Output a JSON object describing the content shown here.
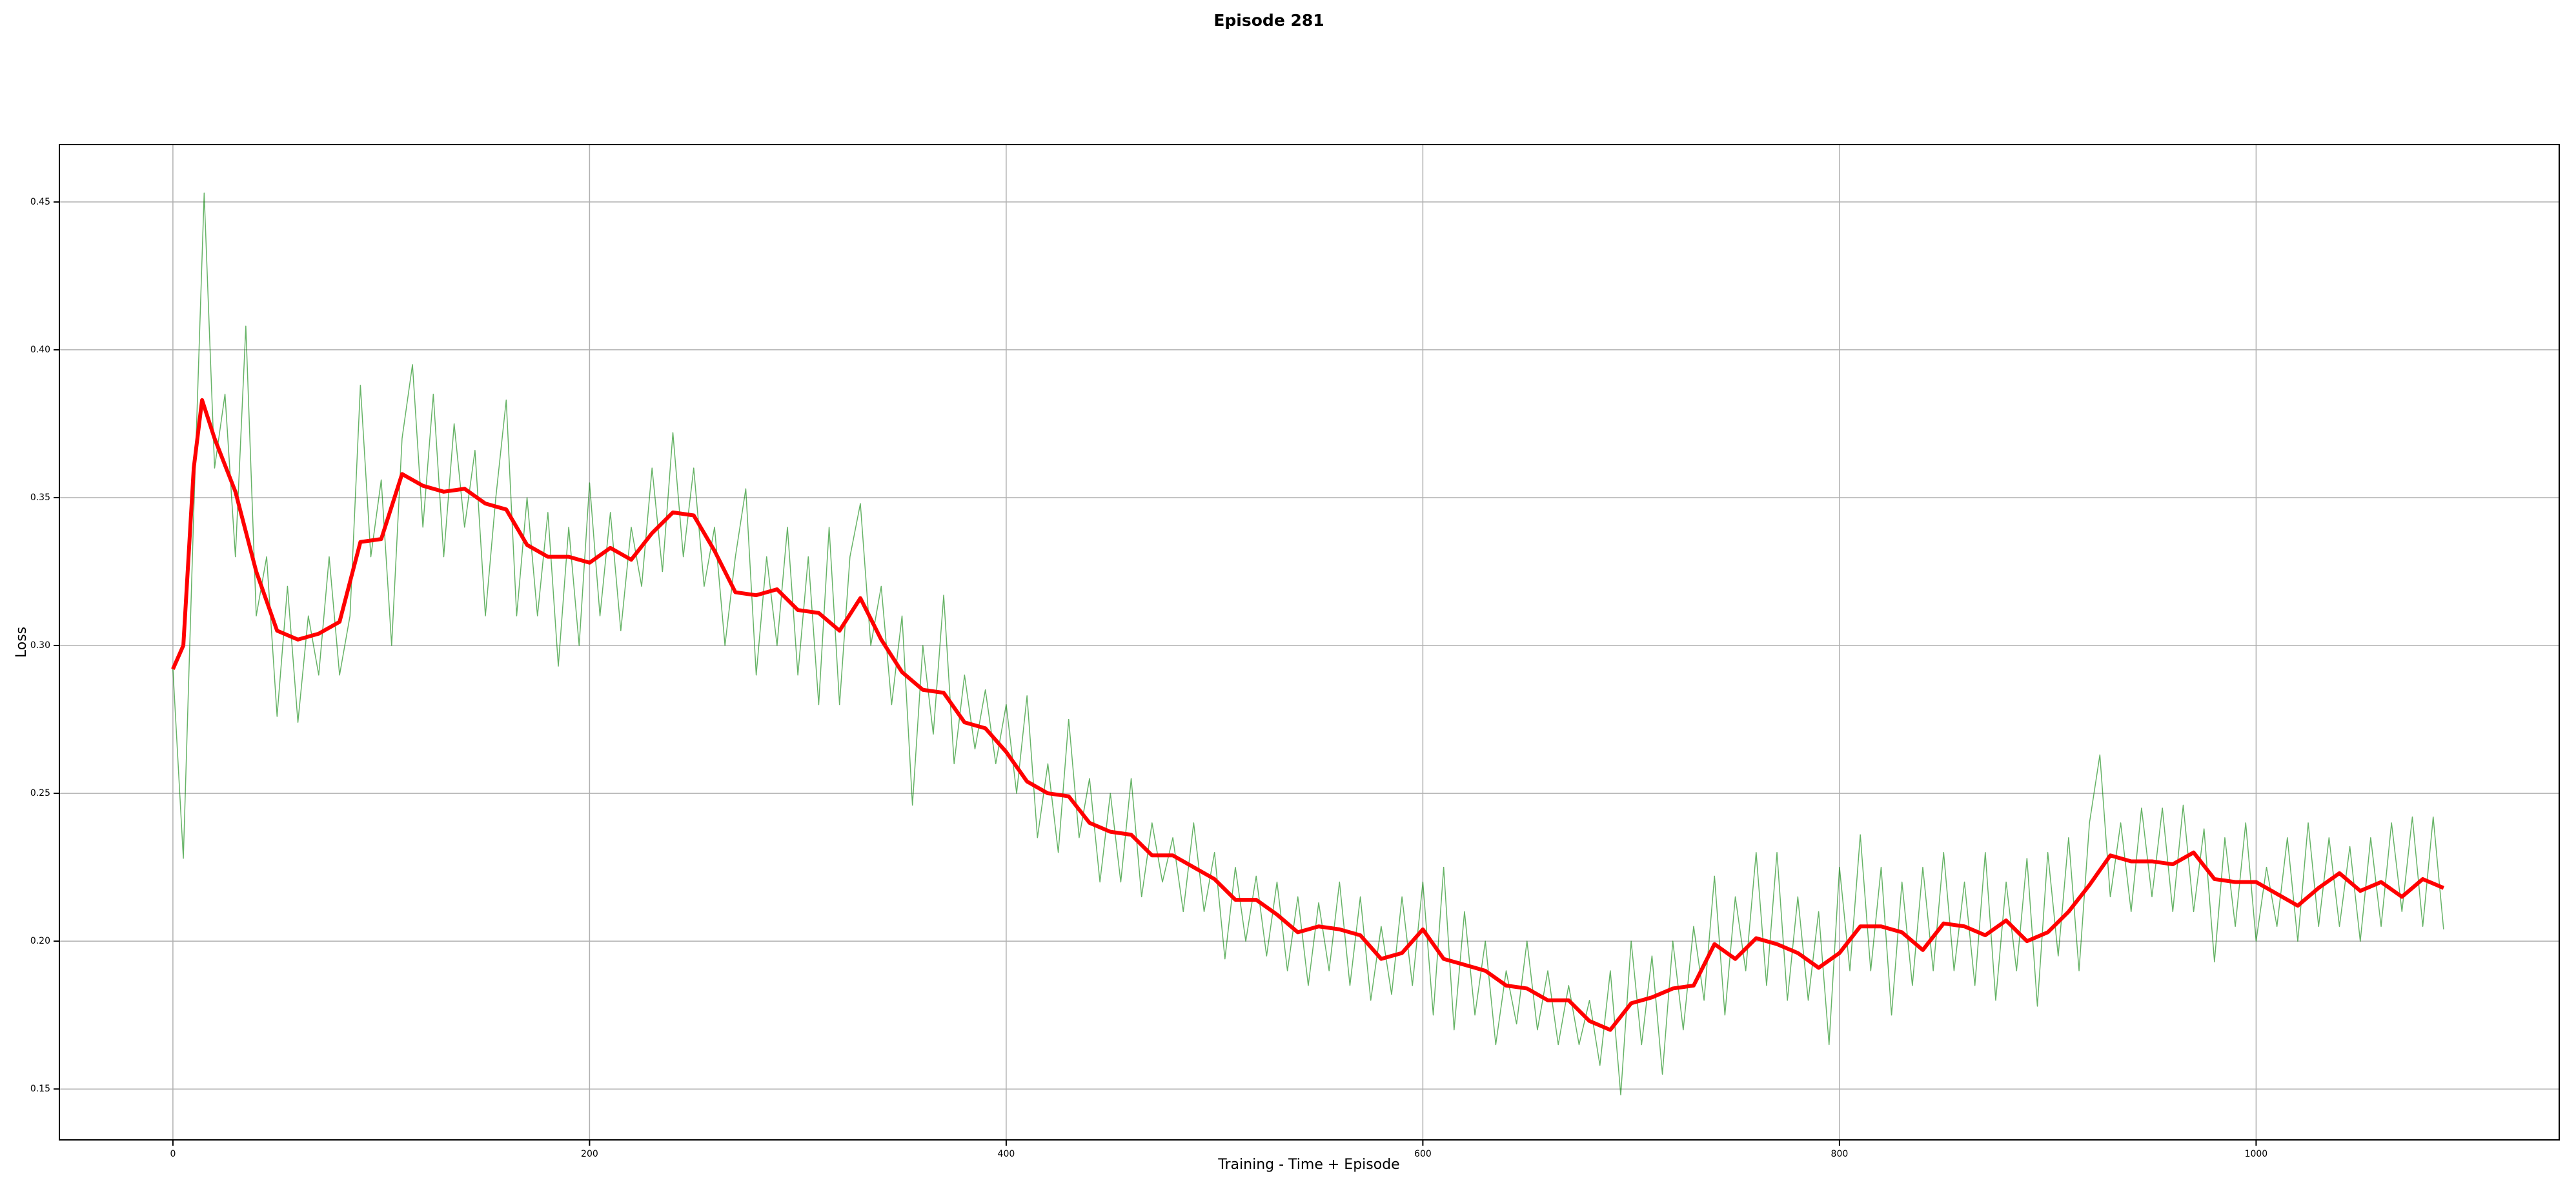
{
  "chart_data": {
    "type": "line",
    "title": "Episode 281",
    "x_label": "Training - Time + Episode",
    "y_label": "Loss",
    "xlim": [
      -54.5,
      1145.5
    ],
    "ylim": [
      0.1328,
      0.4694
    ],
    "xticks": [
      0,
      200,
      400,
      600,
      800,
      1000
    ],
    "yticks": [
      0.15,
      {
        "value": 0.2,
        "label": "0.20"
      },
      0.25,
      {
        "value": 0.3,
        "label": "0.30"
      },
      0.35,
      {
        "value": 0.4,
        "label": "0.40"
      },
      0.45
    ],
    "grid": true,
    "series": [
      {
        "color": "#008000",
        "x": [
          0,
          5,
          10,
          15,
          20,
          25,
          30,
          35,
          40,
          45,
          50,
          55,
          60,
          65,
          70,
          75,
          80,
          85,
          90,
          95,
          100,
          105,
          110,
          115,
          120,
          125,
          130,
          135,
          140,
          145,
          150,
          155,
          160,
          165,
          170,
          175,
          180,
          185,
          190,
          195,
          200,
          205,
          210,
          215,
          220,
          225,
          230,
          235,
          240,
          245,
          250,
          255,
          260,
          265,
          270,
          275,
          280,
          285,
          290,
          295,
          300,
          305,
          310,
          315,
          320,
          325,
          330,
          335,
          340,
          345,
          350,
          355,
          360,
          365,
          370,
          375,
          380,
          385,
          390,
          395,
          400,
          405,
          410,
          415,
          420,
          425,
          430,
          435,
          440,
          445,
          450,
          455,
          460,
          465,
          470,
          475,
          480,
          485,
          490,
          495,
          500,
          505,
          510,
          515,
          520,
          525,
          530,
          535,
          540,
          545,
          550,
          555,
          560,
          565,
          570,
          575,
          580,
          585,
          590,
          595,
          600,
          605,
          610,
          615,
          620,
          625,
          630,
          635,
          640,
          645,
          650,
          655,
          660,
          665,
          670,
          675,
          680,
          685,
          690,
          695,
          700,
          705,
          710,
          715,
          720,
          725,
          730,
          735,
          740,
          745,
          750,
          755,
          760,
          765,
          770,
          775,
          780,
          785,
          790,
          795,
          800,
          805,
          810,
          815,
          820,
          825,
          830,
          835,
          840,
          845,
          850,
          855,
          860,
          865,
          870,
          875,
          880,
          885,
          890,
          895,
          900,
          905,
          910,
          915,
          920,
          925,
          930,
          935,
          940,
          945,
          950,
          955,
          960,
          965,
          970,
          975,
          980,
          985,
          990,
          995,
          1000,
          1005,
          1010,
          1015,
          1020,
          1025,
          1030,
          1035,
          1040,
          1045,
          1050,
          1055,
          1060,
          1065,
          1070,
          1075,
          1080,
          1085,
          1090
        ],
        "values": [
          0.292,
          0.228,
          0.345,
          0.453,
          0.36,
          0.385,
          0.33,
          0.408,
          0.31,
          0.33,
          0.276,
          0.32,
          0.274,
          0.31,
          0.29,
          0.33,
          0.29,
          0.31,
          0.388,
          0.33,
          0.356,
          0.3,
          0.37,
          0.395,
          0.34,
          0.385,
          0.33,
          0.375,
          0.34,
          0.366,
          0.31,
          0.35,
          0.383,
          0.31,
          0.35,
          0.31,
          0.345,
          0.293,
          0.34,
          0.3,
          0.355,
          0.31,
          0.345,
          0.305,
          0.34,
          0.32,
          0.36,
          0.325,
          0.372,
          0.33,
          0.36,
          0.32,
          0.34,
          0.3,
          0.33,
          0.353,
          0.29,
          0.33,
          0.3,
          0.34,
          0.29,
          0.33,
          0.28,
          0.34,
          0.28,
          0.33,
          0.348,
          0.3,
          0.32,
          0.28,
          0.31,
          0.246,
          0.3,
          0.27,
          0.317,
          0.26,
          0.29,
          0.265,
          0.285,
          0.26,
          0.28,
          0.25,
          0.283,
          0.235,
          0.26,
          0.23,
          0.275,
          0.235,
          0.255,
          0.22,
          0.25,
          0.22,
          0.255,
          0.215,
          0.24,
          0.22,
          0.235,
          0.21,
          0.24,
          0.21,
          0.23,
          0.194,
          0.225,
          0.2,
          0.222,
          0.195,
          0.22,
          0.19,
          0.215,
          0.185,
          0.213,
          0.19,
          0.22,
          0.185,
          0.215,
          0.18,
          0.205,
          0.182,
          0.215,
          0.185,
          0.22,
          0.175,
          0.225,
          0.17,
          0.21,
          0.175,
          0.2,
          0.165,
          0.19,
          0.172,
          0.2,
          0.17,
          0.19,
          0.165,
          0.185,
          0.165,
          0.18,
          0.158,
          0.19,
          0.148,
          0.2,
          0.165,
          0.195,
          0.155,
          0.2,
          0.17,
          0.205,
          0.18,
          0.222,
          0.175,
          0.215,
          0.19,
          0.23,
          0.185,
          0.23,
          0.18,
          0.215,
          0.18,
          0.21,
          0.165,
          0.225,
          0.19,
          0.236,
          0.19,
          0.225,
          0.175,
          0.22,
          0.185,
          0.225,
          0.19,
          0.23,
          0.19,
          0.22,
          0.185,
          0.23,
          0.18,
          0.22,
          0.19,
          0.228,
          0.178,
          0.23,
          0.195,
          0.235,
          0.19,
          0.24,
          0.263,
          0.215,
          0.24,
          0.21,
          0.245,
          0.215,
          0.245,
          0.21,
          0.246,
          0.21,
          0.238,
          0.193,
          0.235,
          0.205,
          0.24,
          0.2,
          0.225,
          0.205,
          0.235,
          0.2,
          0.24,
          0.205,
          0.235,
          0.205,
          0.232,
          0.2,
          0.235,
          0.205,
          0.24,
          0.21,
          0.242,
          0.205,
          0.242,
          0.204
        ]
      },
      {
        "color": "#ff0000",
        "x": [
          0,
          5,
          10,
          14,
          20,
          30,
          40,
          50,
          60,
          70,
          80,
          90,
          100,
          110,
          120,
          130,
          140,
          150,
          160,
          170,
          180,
          190,
          200,
          210,
          220,
          230,
          240,
          250,
          260,
          270,
          280,
          290,
          300,
          310,
          320,
          330,
          340,
          350,
          360,
          370,
          380,
          390,
          400,
          410,
          420,
          430,
          440,
          450,
          460,
          470,
          480,
          490,
          500,
          510,
          520,
          530,
          540,
          550,
          560,
          570,
          580,
          590,
          600,
          610,
          620,
          630,
          640,
          650,
          660,
          670,
          680,
          690,
          700,
          710,
          720,
          730,
          740,
          750,
          760,
          770,
          780,
          790,
          800,
          810,
          820,
          830,
          840,
          850,
          860,
          870,
          880,
          890,
          900,
          910,
          920,
          930,
          940,
          950,
          960,
          970,
          980,
          990,
          1000,
          1010,
          1020,
          1030,
          1040,
          1050,
          1060,
          1070,
          1080,
          1090
        ],
        "values": [
          0.292,
          0.3,
          0.36,
          0.383,
          0.37,
          0.352,
          0.325,
          0.305,
          0.302,
          0.304,
          0.308,
          0.335,
          0.336,
          0.358,
          0.354,
          0.352,
          0.353,
          0.348,
          0.346,
          0.334,
          0.33,
          0.33,
          0.328,
          0.333,
          0.329,
          0.338,
          0.345,
          0.344,
          0.332,
          0.318,
          0.317,
          0.319,
          0.312,
          0.311,
          0.305,
          0.316,
          0.302,
          0.291,
          0.285,
          0.284,
          0.274,
          0.272,
          0.264,
          0.254,
          0.25,
          0.249,
          0.24,
          0.237,
          0.236,
          0.229,
          0.229,
          0.225,
          0.221,
          0.214,
          0.214,
          0.209,
          0.203,
          0.205,
          0.204,
          0.202,
          0.194,
          0.196,
          0.204,
          0.194,
          0.192,
          0.19,
          0.185,
          0.184,
          0.18,
          0.18,
          0.173,
          0.17,
          0.179,
          0.181,
          0.184,
          0.185,
          0.199,
          0.194,
          0.201,
          0.199,
          0.196,
          0.191,
          0.196,
          0.205,
          0.205,
          0.203,
          0.197,
          0.206,
          0.205,
          0.202,
          0.207,
          0.2,
          0.203,
          0.21,
          0.219,
          0.229,
          0.227,
          0.227,
          0.226,
          0.23,
          0.221,
          0.22,
          0.22,
          0.216,
          0.212,
          0.218,
          0.223,
          0.217,
          0.22,
          0.215,
          0.221,
          0.218
        ]
      }
    ]
  }
}
